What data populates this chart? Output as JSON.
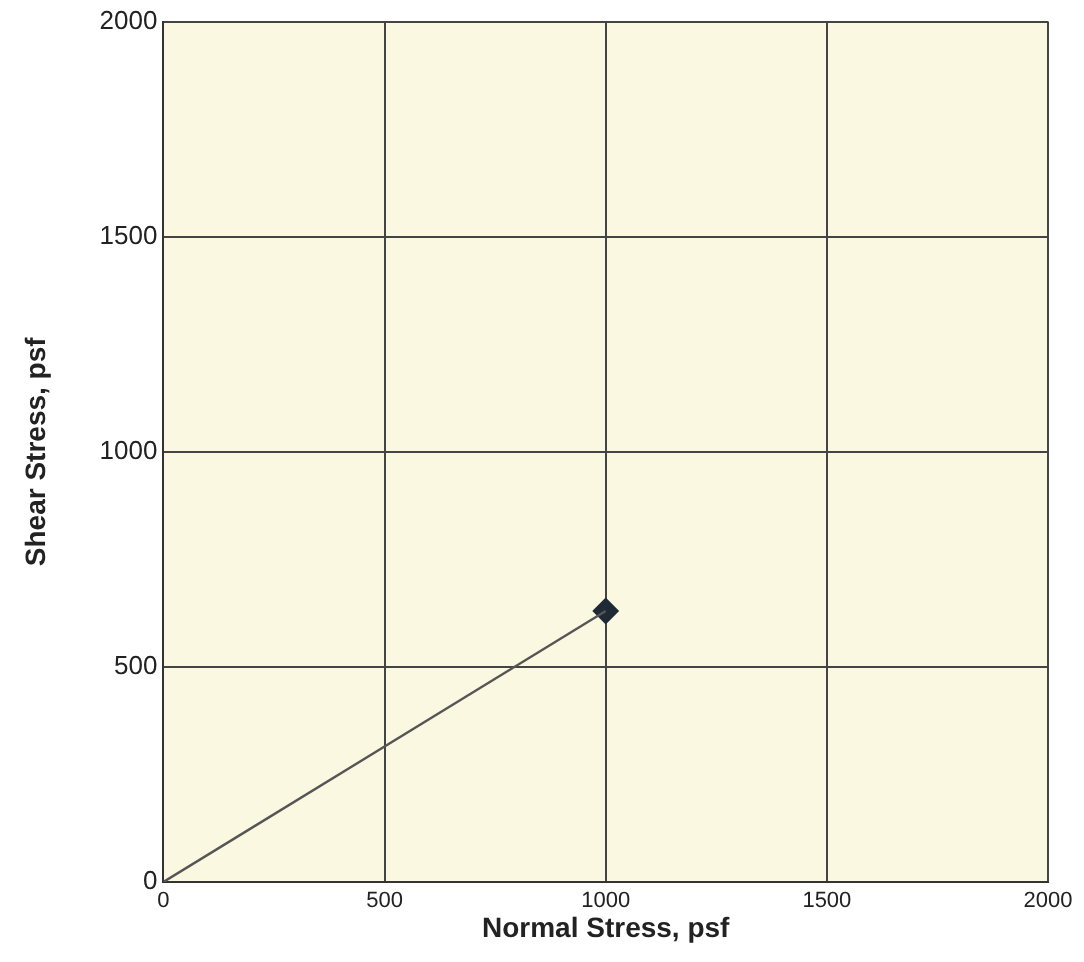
{
  "chart_data": {
    "type": "line",
    "xlabel": "Normal Stress, psf",
    "ylabel": "Shear Stress, psf",
    "xlim": [
      0,
      2000
    ],
    "xticks": [
      0,
      500,
      1000,
      1500,
      2000
    ],
    "ylim": [
      0,
      2000
    ],
    "yticks": [
      0,
      500,
      1000,
      1500,
      2000
    ],
    "grid": true,
    "legend": false,
    "x": [
      0,
      1000
    ],
    "series": [
      {
        "color": "#555555",
        "values": [
          0,
          630
        ],
        "marker": "none"
      },
      {
        "type": "scatter",
        "color": "#1f2a36",
        "values": [
          null,
          630
        ],
        "marker": "diamond"
      }
    ]
  }
}
